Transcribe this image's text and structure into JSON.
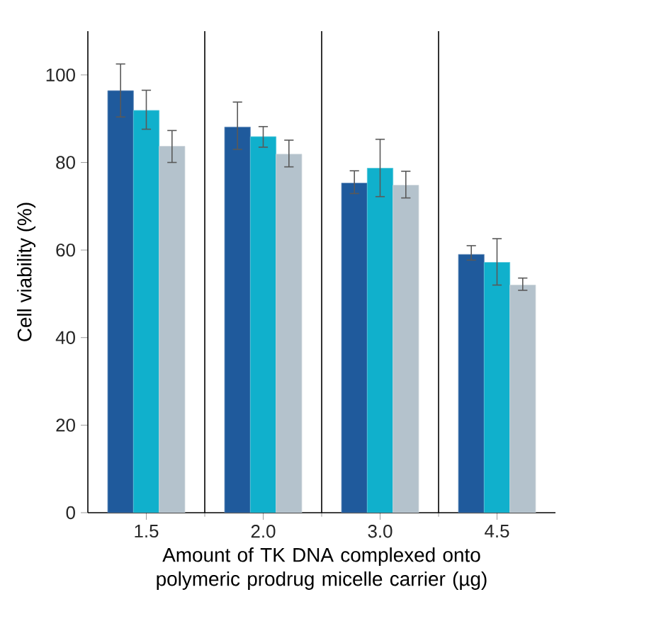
{
  "chart_data": {
    "type": "bar",
    "xlabel": "Amount of TK DNA complexed onto polymeric prodrug micelle carrier (µg)",
    "ylabel": "Cell viability (%)",
    "categories": [
      "1.5",
      "2.0",
      "3.0",
      "4.5"
    ],
    "series": [
      {
        "color": "#1f5a9c",
        "values": [
          96.4,
          88.1,
          75.3,
          59.0
        ],
        "errors": [
          [
            90.4,
            102.5
          ],
          [
            83.0,
            93.8
          ],
          [
            72.9,
            78.1
          ],
          [
            57.7,
            61.0
          ]
        ]
      },
      {
        "color": "#10b0cc",
        "values": [
          91.9,
          85.9,
          78.7,
          57.2
        ],
        "errors": [
          [
            87.6,
            96.5
          ],
          [
            83.5,
            88.2
          ],
          [
            72.2,
            85.3
          ],
          [
            52.0,
            62.6
          ]
        ]
      },
      {
        "color": "#b4c2cc",
        "values": [
          83.7,
          81.9,
          74.8,
          52.0
        ],
        "errors": [
          [
            80.0,
            87.3
          ],
          [
            79.0,
            85.1
          ],
          [
            71.9,
            78.0
          ],
          [
            50.8,
            53.6
          ]
        ]
      }
    ],
    "ylim": [
      0,
      110
    ],
    "yticks": [
      0,
      20,
      40,
      60,
      80,
      100
    ]
  }
}
